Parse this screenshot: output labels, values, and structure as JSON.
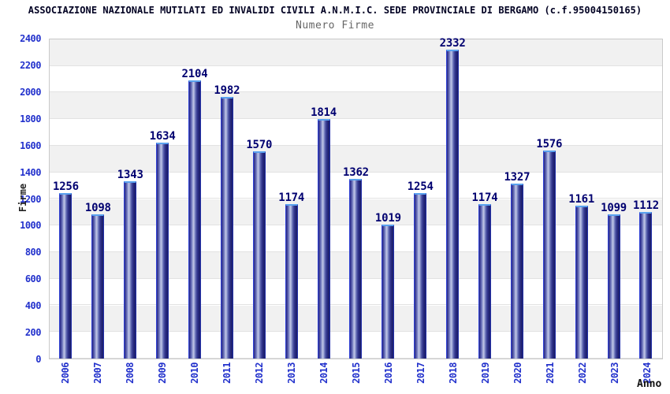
{
  "header": {
    "title": "ASSOCIAZIONE NAZIONALE MUTILATI ED INVALIDI CIVILI A.N.M.I.C. SEDE PROVINCIALE DI BERGAMO (c.f.95004150165)",
    "subtitle": "Numero Firme"
  },
  "chart_data": {
    "type": "bar",
    "title": "Numero Firme",
    "xlabel": "Anno",
    "ylabel": "Firme",
    "categories": [
      "2006",
      "2007",
      "2008",
      "2009",
      "2010",
      "2011",
      "2012",
      "2013",
      "2014",
      "2015",
      "2016",
      "2017",
      "2018",
      "2019",
      "2020",
      "2021",
      "2022",
      "2023",
      "2024"
    ],
    "values": [
      1256,
      1098,
      1343,
      1634,
      2104,
      1982,
      1570,
      1174,
      1814,
      1362,
      1019,
      1254,
      2332,
      1174,
      1327,
      1576,
      1161,
      1099,
      1112
    ],
    "ylim": [
      0,
      2400
    ],
    "ytick_step": 200,
    "grid": "horizontal-bands-alternating",
    "legend": "none"
  },
  "colors": {
    "bar_outline": "#2e3fd4",
    "bar_cap": "#5aa2ef",
    "bar_dark": "#1b1d68",
    "bar_highlight": "#c2c7e6",
    "tick_label": "#2231cc",
    "value_label": "#000070",
    "title": "#000022",
    "subtitle": "#666666",
    "band_gray": "#f1f1f1",
    "band_white": "#ffffff",
    "grid_line": "#e2e2e2",
    "plot_border": "#c9c9c9"
  }
}
